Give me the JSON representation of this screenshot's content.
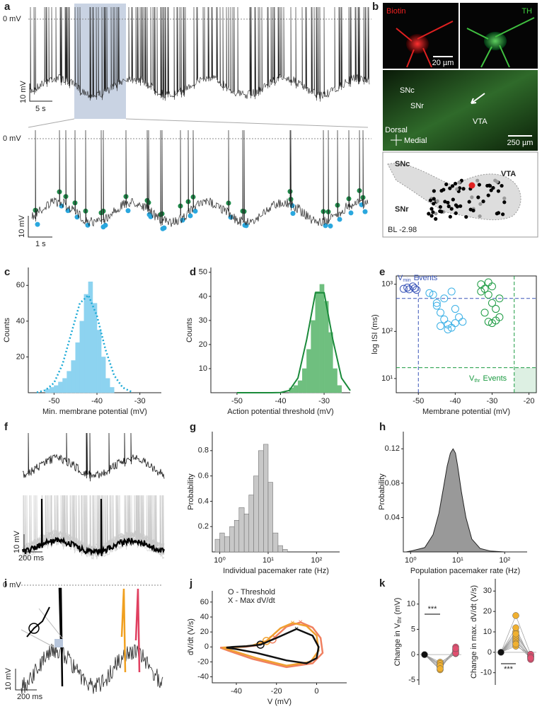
{
  "figure": {
    "panel_labels": [
      "a",
      "b",
      "c",
      "d",
      "e",
      "f",
      "g",
      "h",
      "i",
      "j",
      "k"
    ],
    "a": {
      "zero": "0 mV",
      "scale_v": "10 mV",
      "scale_t": "5 s",
      "zero_zoom": "0 mV",
      "scale_v_zoom": "10 mV",
      "scale_t_zoom": "1 s"
    },
    "b": {
      "biotin": "Biotin",
      "th": "TH",
      "scale_small": "20 µm",
      "snc": "SNc",
      "snr": "SNr",
      "vta": "VTA",
      "dorsal": "Dorsal",
      "medial": "Medial",
      "scale_large": "250 µm",
      "atlas_snc": "SNc",
      "atlas_vta": "VTA",
      "atlas_snr": "SNr",
      "bregma": "BL -2.98"
    },
    "f": {
      "scale_v": "10 mV",
      "scale_t": "200 ms"
    },
    "i": {
      "zero": "0 mV",
      "scale_v": "10 mV",
      "scale_t": "200 ms"
    }
  },
  "chart_data": [
    {
      "type": "histogram",
      "xlabel": "Min. membrane potential (mV)",
      "ylabel": "Counts",
      "color": "#8dd3f0",
      "bins": [
        -52,
        -51,
        -50,
        -49,
        -48,
        -47,
        -46,
        -45,
        -44,
        -43,
        -42,
        -41,
        -40,
        -39,
        -38,
        -37,
        -36
      ],
      "counts": [
        2,
        3,
        4,
        6,
        8,
        12,
        18,
        28,
        40,
        55,
        62,
        50,
        35,
        20,
        8,
        3
      ],
      "fit": {
        "color": "#1aa9d6",
        "x": [
          -54,
          -52,
          -50,
          -48,
          -46,
          -44,
          -42,
          -40,
          -38,
          -36,
          -34,
          -32
        ],
        "values": [
          0.2,
          1.4,
          5.5,
          16,
          33,
          50,
          54.5,
          43,
          24,
          9.7,
          2.9,
          0.6
        ]
      },
      "xlim": [
        -56,
        -25
      ],
      "ylim": [
        0,
        70
      ],
      "xticks": [
        -50,
        -40,
        -30
      ],
      "yticks": [
        20,
        40,
        60
      ]
    },
    {
      "type": "histogram",
      "xlabel": "Action potential threshold (mV)",
      "ylabel": "Counts",
      "color": "#6fbf7f",
      "bins": [
        -38,
        -37,
        -36,
        -35,
        -34,
        -33,
        -32,
        -31,
        -30,
        -29,
        -28,
        -27,
        -26
      ],
      "counts": [
        2,
        3,
        5,
        10,
        18,
        30,
        42,
        45,
        38,
        25,
        10,
        3
      ],
      "fit": {
        "color": "#1a8a3a",
        "x": [
          -50,
          -44,
          -42,
          -40,
          -38,
          -36,
          -34,
          -32,
          -30,
          -28,
          -26,
          -24
        ],
        "values": [
          0,
          0,
          0,
          0.1,
          0.9,
          6.1,
          22,
          41.5,
          41.5,
          22,
          6.1,
          0.9
        ]
      },
      "xlim": [
        -56,
        -24
      ],
      "ylim": [
        0,
        52
      ],
      "xticks": [
        -50,
        -40,
        -30
      ],
      "yticks": [
        10,
        20,
        30,
        40,
        50
      ]
    },
    {
      "type": "scatter",
      "xlabel": "Membrane potential (mV)",
      "ylabel": "log ISI (ms)",
      "log_y": true,
      "series": [
        {
          "color": "#3a55b8",
          "x": [
            -54,
            -53,
            -52.5,
            -51.5,
            -51,
            -50.5
          ],
          "values": [
            800,
            850,
            780,
            900,
            820,
            760
          ]
        },
        {
          "color": "#3ab0e6",
          "x": [
            -46,
            -45,
            -44,
            -43,
            -42,
            -41,
            -40,
            -39,
            -44,
            -42,
            -40,
            -43,
            -41,
            -45,
            -47,
            -38
          ],
          "values": [
            600,
            400,
            250,
            180,
            140,
            120,
            150,
            200,
            130,
            110,
            300,
            500,
            700,
            350,
            650,
            160
          ]
        },
        {
          "color": "#1a9a40",
          "x": [
            -33,
            -32,
            -31,
            -30,
            -29,
            -28,
            -31,
            -30,
            -29,
            -32,
            -31,
            -30,
            -28,
            -33
          ],
          "values": [
            1000,
            800,
            600,
            400,
            300,
            200,
            160,
            150,
            170,
            250,
            1100,
            900,
            500,
            700
          ]
        }
      ],
      "reference_lines": [
        {
          "axis": "x",
          "value": -50,
          "color": "#3a55b8"
        },
        {
          "axis": "y",
          "value": 500,
          "color": "#3a55b8"
        },
        {
          "axis": "x",
          "value": -24,
          "color": "#1a9a40"
        },
        {
          "axis": "y",
          "value": 17,
          "color": "#1a9a40"
        }
      ],
      "annotation_min": {
        "v": "V",
        "sub": "min",
        "text": "Events"
      },
      "annotation_thr": {
        "v": "V",
        "sub": "thr",
        "text": "Events"
      },
      "xlim": [
        -56,
        -18
      ],
      "ylim": [
        5,
        1500
      ],
      "xticks": [
        -50,
        -40,
        -30,
        -20
      ],
      "yticks": [
        {
          "value": 10,
          "label": "10¹"
        },
        {
          "value": 100,
          "label": "10²"
        },
        {
          "value": 1000,
          "label": "10³"
        }
      ]
    },
    {
      "type": "histogram",
      "xlabel": "Individual pacemaker rate (Hz)",
      "ylabel": "Probability",
      "color": "#c8c8c8",
      "log_x": true,
      "bins": [
        0.8,
        1,
        1.25,
        1.6,
        2,
        2.5,
        3.2,
        4,
        5,
        6.3,
        8,
        10,
        12.5,
        16,
        20,
        25
      ],
      "counts": [
        0.1,
        0.15,
        0.12,
        0.2,
        0.25,
        0.35,
        0.3,
        0.45,
        0.6,
        0.8,
        0.85,
        0.55,
        0.15,
        0.05,
        0.02
      ],
      "xlim": [
        0.7,
        300
      ],
      "ylim": [
        0,
        0.95
      ],
      "xticks": [
        {
          "value": 1,
          "label": "10⁰"
        },
        {
          "value": 10,
          "label": "10¹"
        },
        {
          "value": 100,
          "label": "10²"
        }
      ],
      "yticks": [
        0.2,
        0.4,
        0.6,
        0.8
      ]
    },
    {
      "type": "area",
      "xlabel": "Population pacemaker rate (Hz)",
      "ylabel": "Probability",
      "color": "#999999",
      "log_x": true,
      "x": [
        0.8,
        1,
        2,
        3,
        4,
        5,
        6,
        7,
        8,
        9,
        10,
        12,
        15,
        20,
        30,
        50,
        100,
        200
      ],
      "values": [
        0,
        0.001,
        0.005,
        0.02,
        0.045,
        0.075,
        0.1,
        0.115,
        0.12,
        0.115,
        0.1,
        0.07,
        0.04,
        0.015,
        0.004,
        0.001,
        0,
        0
      ],
      "xlim": [
        0.7,
        300
      ],
      "ylim": [
        0,
        0.14
      ],
      "xticks": [
        {
          "value": 1,
          "label": "10⁰"
        },
        {
          "value": 10,
          "label": "10¹"
        },
        {
          "value": 100,
          "label": "10²"
        }
      ],
      "yticks": [
        0.04,
        0.08,
        0.12
      ]
    },
    {
      "type": "line",
      "xlabel": "V (mV)",
      "ylabel": "dV/dt (V/s)",
      "legend": [
        "O - Threshold",
        "X - Max dV/dt"
      ],
      "series": [
        {
          "color": "#f08060",
          "x": [
            -36,
            -30,
            -22,
            -15,
            -8,
            -2,
            2,
            3,
            -2,
            -15,
            -32,
            -44,
            -48,
            -36
          ],
          "values": [
            0,
            2,
            10,
            27,
            33,
            26,
            12,
            -8,
            -22,
            -27,
            -16,
            -5,
            -1,
            0
          ]
        },
        {
          "color": "#f0a030",
          "x": [
            -38,
            -32,
            -25,
            -18,
            -12,
            -5,
            0,
            1,
            -3,
            -15,
            -30,
            -42,
            -47,
            -38
          ],
          "values": [
            0,
            2,
            8,
            25,
            32,
            28,
            15,
            -5,
            -20,
            -25,
            -15,
            -5,
            -1,
            0
          ]
        },
        {
          "color": "#111111",
          "x": [
            -42,
            -35,
            -28,
            -20,
            -10,
            -2,
            1,
            0,
            -5,
            -15,
            -30,
            -40,
            -45,
            -42
          ],
          "values": [
            0,
            1,
            3,
            12,
            24,
            15,
            0,
            -15,
            -22,
            -18,
            -8,
            -3,
            -1,
            0
          ]
        }
      ],
      "xlim": [
        -52,
        15
      ],
      "ylim": [
        -48,
        75
      ],
      "xticks": [
        -40,
        -20,
        0
      ],
      "yticks": [
        -40,
        -20,
        0,
        20,
        40,
        60
      ]
    },
    {
      "type": "strip",
      "ylabel": {
        "pre": "Change in V",
        "sub": "thr",
        "post": " (mV)"
      },
      "annotation": "***",
      "series": [
        {
          "color": "#111111",
          "values": [
            0
          ]
        },
        {
          "color": "#f0b030",
          "values": [
            -1.5,
            -2,
            -2.5,
            -3,
            -1.8,
            -2.2,
            -2.8
          ]
        },
        {
          "color": "#e05070",
          "values": [
            0.2,
            0.5,
            1,
            1.5,
            0.8,
            0.3,
            1.2
          ]
        }
      ],
      "ylim": [
        -6,
        15
      ],
      "yticks": [
        -5,
        0,
        5,
        10
      ]
    },
    {
      "type": "strip",
      "ylabel": {
        "pre": "Change in  max. dV/dt (V/s)"
      },
      "annotation": "***",
      "series": [
        {
          "color": "#111111",
          "values": [
            0
          ]
        },
        {
          "color": "#f0b030",
          "values": [
            3,
            5,
            6,
            7,
            8,
            10,
            12,
            18,
            9,
            4
          ]
        },
        {
          "color": "#e05070",
          "values": [
            -1,
            -2,
            -3,
            -2.5,
            -1.5,
            -2,
            -3.5,
            -1,
            -2.2,
            -2.8
          ]
        }
      ],
      "ylim": [
        -16,
        36
      ],
      "yticks": [
        -10,
        0,
        10,
        20,
        30
      ]
    }
  ]
}
